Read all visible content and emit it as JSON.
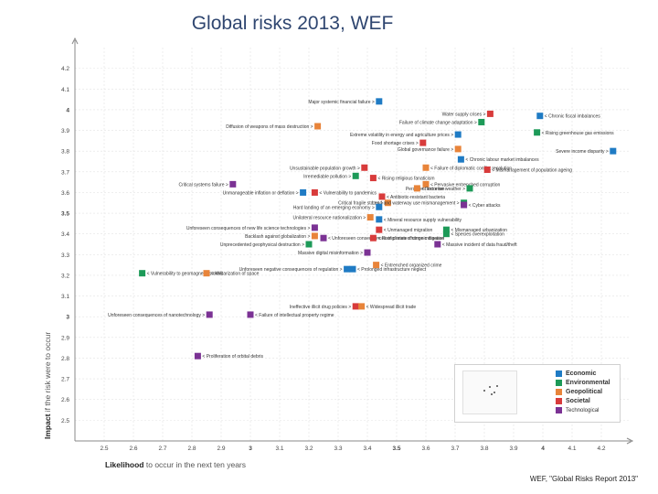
{
  "title": "Global risks 2013, WEF",
  "credit": "WEF, \"Global Risks Report 2013\"",
  "colors": {
    "Economic": "#1f7bc4",
    "Environmental": "#1d9a58",
    "Geopolitical": "#e8843a",
    "Societal": "#d83b3b",
    "Technological": "#7b3294"
  },
  "legend": {
    "items": [
      "Economic",
      "Environmental",
      "Geopolitical",
      "Societal",
      "Technological"
    ]
  },
  "chart_data": {
    "type": "scatter",
    "title": "Global risks 2013, WEF",
    "xlabel": "Likelihood",
    "xlabel_rest": "to occur in the next ten years",
    "ylabel": "Impact",
    "ylabel_rest": "if the risk were to occur",
    "xlim": [
      2.4,
      4.3
    ],
    "ylim": [
      2.4,
      4.3
    ],
    "xticks": [
      "2.5",
      "2.6",
      "2.7",
      "2.8",
      "2.9",
      "3",
      "3.1",
      "3.2",
      "3.3",
      "3.4",
      "3.5",
      "3.6",
      "3.7",
      "3.8",
      "3.9",
      "4",
      "4.1",
      "4.2"
    ],
    "yticks": [
      "2.5",
      "2.6",
      "2.7",
      "2.8",
      "2.9",
      "3",
      "3.1",
      "3.2",
      "3.3",
      "3.4",
      "3.5",
      "3.6",
      "3.7",
      "3.8",
      "3.9",
      "4",
      "4.1",
      "4.2"
    ],
    "xtick_values": [
      2.5,
      2.6,
      2.7,
      2.8,
      2.9,
      3.0,
      3.1,
      3.2,
      3.3,
      3.4,
      3.5,
      3.6,
      3.7,
      3.8,
      3.9,
      4.0,
      4.1,
      4.2
    ],
    "ytick_values": [
      2.5,
      2.6,
      2.7,
      2.8,
      2.9,
      3.0,
      3.1,
      3.2,
      3.3,
      3.4,
      3.5,
      3.6,
      3.7,
      3.8,
      3.9,
      4.0,
      4.1,
      4.2
    ],
    "points": [
      {
        "label": "Major systemic financial failure",
        "x": 3.44,
        "y": 4.04,
        "cat": "Economic",
        "side": "left"
      },
      {
        "label": "Water supply crises",
        "x": 3.82,
        "y": 3.98,
        "cat": "Societal",
        "side": "left"
      },
      {
        "label": "Chronic fiscal imbalances",
        "x": 3.99,
        "y": 3.97,
        "cat": "Economic",
        "side": "right"
      },
      {
        "label": "Diffusion of weapons of mass destruction",
        "x": 3.23,
        "y": 3.92,
        "cat": "Geopolitical",
        "side": "left"
      },
      {
        "label": "Failure of climate change adaptation",
        "x": 3.79,
        "y": 3.94,
        "cat": "Environmental",
        "side": "left"
      },
      {
        "label": "Rising greenhouse gas emissions",
        "x": 3.98,
        "y": 3.89,
        "cat": "Environmental",
        "side": "right"
      },
      {
        "label": "Extreme volatility in energy and agriculture prices",
        "x": 3.71,
        "y": 3.88,
        "cat": "Economic",
        "side": "left"
      },
      {
        "label": "Food shortage crises",
        "x": 3.59,
        "y": 3.84,
        "cat": "Societal",
        "side": "left"
      },
      {
        "label": "Global governance failure",
        "x": 3.71,
        "y": 3.81,
        "cat": "Geopolitical",
        "side": "left"
      },
      {
        "label": "Severe income disparity",
        "x": 4.24,
        "y": 3.8,
        "cat": "Economic",
        "side": "left"
      },
      {
        "label": "Chronic labour market imbalances",
        "x": 3.72,
        "y": 3.76,
        "cat": "Economic",
        "side": "right"
      },
      {
        "label": "Unsustainable population growth",
        "x": 3.39,
        "y": 3.72,
        "cat": "Societal",
        "side": "left"
      },
      {
        "label": "Failure of diplomatic conflict resolution",
        "x": 3.6,
        "y": 3.72,
        "cat": "Geopolitical",
        "side": "right"
      },
      {
        "label": "Mismanagement of population ageing",
        "x": 3.81,
        "y": 3.71,
        "cat": "Societal",
        "side": "right"
      },
      {
        "label": "Irremediable pollution",
        "x": 3.36,
        "y": 3.68,
        "cat": "Environmental",
        "side": "left"
      },
      {
        "label": "Rising religious fanaticism",
        "x": 3.42,
        "y": 3.67,
        "cat": "Societal",
        "side": "right"
      },
      {
        "label": "Critical systems failure",
        "x": 2.94,
        "y": 3.64,
        "cat": "Technological",
        "side": "left"
      },
      {
        "label": "Pervasive entrenched corruption",
        "x": 3.6,
        "y": 3.64,
        "cat": "Geopolitical",
        "side": "right"
      },
      {
        "label": "Persistent extreme weather",
        "x": 3.75,
        "y": 3.62,
        "cat": "Environmental",
        "side": "left"
      },
      {
        "label": "Terrorism",
        "x": 3.57,
        "y": 3.62,
        "cat": "Geopolitical",
        "side": "right"
      },
      {
        "label": "Unmanageable inflation or deflation",
        "x": 3.18,
        "y": 3.6,
        "cat": "Economic",
        "side": "left"
      },
      {
        "label": "Vulnerability to pandemics",
        "x": 3.22,
        "y": 3.6,
        "cat": "Societal",
        "side": "right"
      },
      {
        "label": "Antibiotic-resistant bacteria",
        "x": 3.45,
        "y": 3.58,
        "cat": "Societal",
        "side": "right"
      },
      {
        "label": "Critical fragile states",
        "x": 3.47,
        "y": 3.55,
        "cat": "Geopolitical",
        "side": "left"
      },
      {
        "label": "Land and waterway use mismanagement",
        "x": 3.73,
        "y": 3.55,
        "cat": "Environmental",
        "side": "left"
      },
      {
        "label": "Cyber attacks",
        "x": 3.73,
        "y": 3.54,
        "cat": "Technological",
        "side": "right"
      },
      {
        "label": "Hard landing of an emerging economy",
        "x": 3.44,
        "y": 3.53,
        "cat": "Economic",
        "side": "left"
      },
      {
        "label": "Unilateral resource nationalization",
        "x": 3.41,
        "y": 3.48,
        "cat": "Geopolitical",
        "side": "left"
      },
      {
        "label": "Mineral resource supply vulnerability",
        "x": 3.44,
        "y": 3.47,
        "cat": "Economic",
        "side": "right"
      },
      {
        "label": "Unforeseen consequences of new life science technologies",
        "x": 3.22,
        "y": 3.43,
        "cat": "Technological",
        "side": "left"
      },
      {
        "label": "Unmanaged migration",
        "x": 3.44,
        "y": 3.42,
        "cat": "Societal",
        "side": "right"
      },
      {
        "label": "Mismanaged urbanization",
        "x": 3.67,
        "y": 3.42,
        "cat": "Environmental",
        "side": "right"
      },
      {
        "label": "Species overexploitation",
        "x": 3.67,
        "y": 3.4,
        "cat": "Environmental",
        "side": "right"
      },
      {
        "label": "Backlash against globalization",
        "x": 3.22,
        "y": 3.39,
        "cat": "Geopolitical",
        "side": "left"
      },
      {
        "label": "Unforeseen consequences of climate change mitigation",
        "x": 3.25,
        "y": 3.38,
        "cat": "Technological",
        "side": "right"
      },
      {
        "label": "Rising rates of chronic disease",
        "x": 3.42,
        "y": 3.38,
        "cat": "Societal",
        "side": "right"
      },
      {
        "label": "Unprecedented geophysical destruction",
        "x": 3.2,
        "y": 3.35,
        "cat": "Environmental",
        "side": "left"
      },
      {
        "label": "Massive incident of data fraud/theft",
        "x": 3.64,
        "y": 3.35,
        "cat": "Technological",
        "side": "right"
      },
      {
        "label": "Massive digital misinformation",
        "x": 3.4,
        "y": 3.31,
        "cat": "Technological",
        "side": "left"
      },
      {
        "label": "Entrenched organized crime",
        "x": 3.43,
        "y": 3.25,
        "cat": "Geopolitical",
        "side": "right"
      },
      {
        "label": "Unforeseen negative consequences of regulation",
        "x": 3.33,
        "y": 3.23,
        "cat": "Economic",
        "side": "left"
      },
      {
        "label": "Prolonged infrastructure neglect",
        "x": 3.35,
        "y": 3.23,
        "cat": "Economic",
        "side": "right"
      },
      {
        "label": "Vulnerability to geomagnetic storms",
        "x": 2.63,
        "y": 3.21,
        "cat": "Environmental",
        "side": "right"
      },
      {
        "label": "Militarization of space",
        "x": 2.85,
        "y": 3.21,
        "cat": "Geopolitical",
        "side": "right"
      },
      {
        "label": "Ineffective illicit drug policies",
        "x": 3.36,
        "y": 3.05,
        "cat": "Societal",
        "side": "left"
      },
      {
        "label": "Widespread illicit trade",
        "x": 3.38,
        "y": 3.05,
        "cat": "Geopolitical",
        "side": "right"
      },
      {
        "label": "Unforeseen consequences of nanotechnology",
        "x": 2.86,
        "y": 3.01,
        "cat": "Technological",
        "side": "left"
      },
      {
        "label": "Failure of intellectual property regime",
        "x": 3.0,
        "y": 3.01,
        "cat": "Technological",
        "side": "right"
      },
      {
        "label": "Proliferation of orbital debris",
        "x": 2.82,
        "y": 2.81,
        "cat": "Technological",
        "side": "right"
      }
    ]
  }
}
